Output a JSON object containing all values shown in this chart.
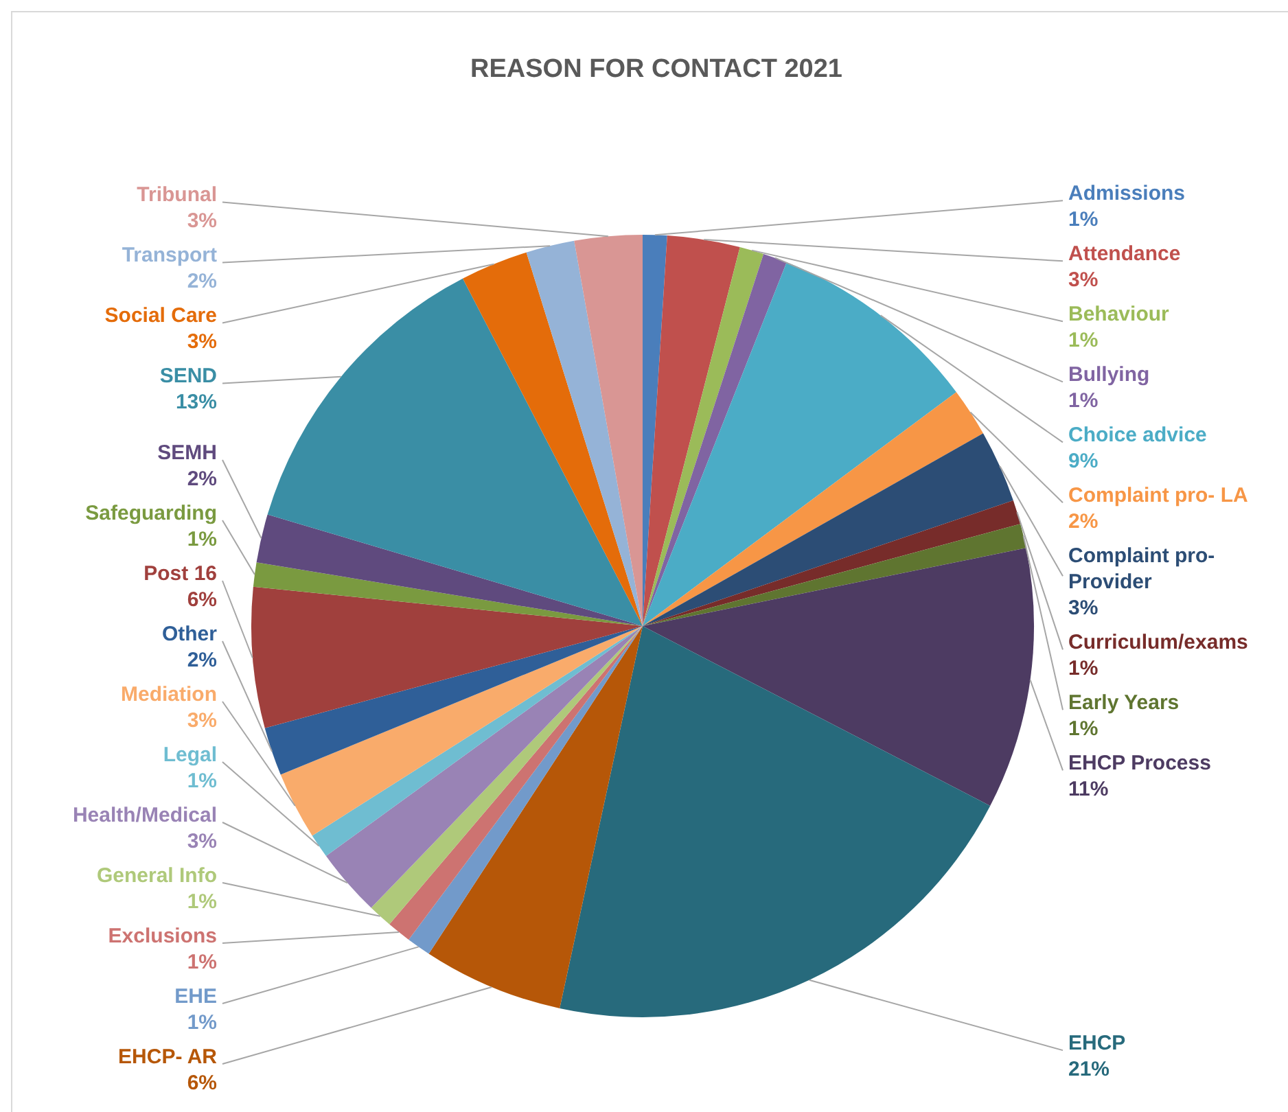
{
  "chart_data": {
    "type": "pie",
    "title": "REASON FOR CONTACT 2021",
    "categories": [
      "Admissions",
      "Attendance",
      "Behaviour",
      "Bullying",
      "Choice advice",
      "Complaint pro- LA",
      "Complaint pro- Provider",
      "Curriculum/exams",
      "Early Years",
      "EHCP Process",
      "EHCP",
      "EHCP- AR",
      "EHE",
      "Exclusions",
      "General Info",
      "Health/Medical",
      "Legal",
      "Mediation",
      "Other",
      "Post 16",
      "Safeguarding",
      "SEMH",
      "SEND",
      "Social Care",
      "Transport",
      "Tribunal"
    ],
    "values": [
      1,
      3,
      1,
      1,
      8.8,
      2,
      3,
      1,
      1,
      10.8,
      20.8,
      5.8,
      1,
      1,
      1,
      2.8,
      1,
      2.8,
      2,
      5.8,
      1,
      2,
      12.8,
      2.8,
      2,
      2.8
    ],
    "colors": [
      "#4a7ebb",
      "#c0504d",
      "#9bbb59",
      "#8064a2",
      "#4bacc6",
      "#f79646",
      "#2c4d75",
      "#772c2a",
      "#5f7530",
      "#4d3b62",
      "#276a7c",
      "#b65708",
      "#729aca",
      "#cd7371",
      "#afc97a",
      "#9983b5",
      "#6fbdd1",
      "#f9ab6b",
      "#2f5f98",
      "#a0403d",
      "#7a9a40",
      "#5f4a7e",
      "#3a8ea5",
      "#e46c0a",
      "#95b3d7",
      "#d99694"
    ],
    "value_labels": [
      "1%",
      "3%",
      "1%",
      "1%",
      "9%",
      "2%",
      "3%",
      "1%",
      "1%",
      "11%",
      "21%",
      "6%",
      "1%",
      "1%",
      "1%",
      "3%",
      "1%",
      "3%",
      "2%",
      "6%",
      "1%",
      "2%",
      "13%",
      "3%",
      "2%",
      "3%"
    ]
  }
}
